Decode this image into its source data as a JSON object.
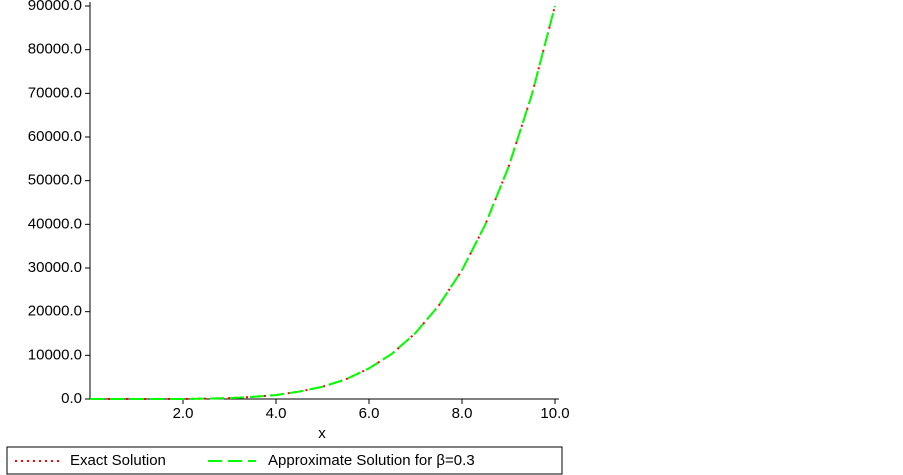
{
  "chart_data": {
    "type": "line",
    "x_label": "x",
    "x": [
      0,
      0.5,
      1,
      1.5,
      2,
      2.5,
      3,
      3.5,
      4,
      4.5,
      5,
      5.5,
      6,
      6.5,
      7,
      7.5,
      8,
      8.5,
      9,
      9.5,
      10
    ],
    "series": [
      {
        "name": "Exact Solution",
        "color": "#ff0000",
        "style": "dotted",
        "values": [
          0,
          0,
          0,
          0,
          0,
          100,
          200,
          500,
          900,
          1700,
          2800,
          4500,
          7000,
          10400,
          15100,
          21400,
          29500,
          39900,
          53100,
          69600,
          90000
        ]
      },
      {
        "name": "Approximate Solution for β=0.3",
        "color": "#00ff00",
        "style": "dashed",
        "values": [
          0,
          0,
          0,
          0,
          0,
          100,
          200,
          500,
          900,
          1700,
          2800,
          4500,
          7000,
          10400,
          15100,
          21400,
          29500,
          39900,
          53100,
          69600,
          90000
        ]
      }
    ],
    "xlim": [
      0,
      10
    ],
    "xticks": [
      {
        "value": 2,
        "label": "2.0"
      },
      {
        "value": 4,
        "label": "4.0"
      },
      {
        "value": 6,
        "label": "6.0"
      },
      {
        "value": 8,
        "label": "8.0"
      },
      {
        "value": 10,
        "label": "10.0"
      }
    ],
    "ylim": [
      0,
      90000
    ],
    "yticks": [
      {
        "value": 0,
        "label": "0.0"
      },
      {
        "value": 10000,
        "label": "10000.0"
      },
      {
        "value": 20000,
        "label": "20000.0"
      },
      {
        "value": 30000,
        "label": "30000.0"
      },
      {
        "value": 40000,
        "label": "40000.0"
      },
      {
        "value": 50000,
        "label": "50000.0"
      },
      {
        "value": 60000,
        "label": "60000.0"
      },
      {
        "value": 70000,
        "label": "70000.0"
      },
      {
        "value": 80000,
        "label": "80000.0"
      },
      {
        "value": 90000,
        "label": "90000.0"
      }
    ],
    "legend": "bottom"
  }
}
